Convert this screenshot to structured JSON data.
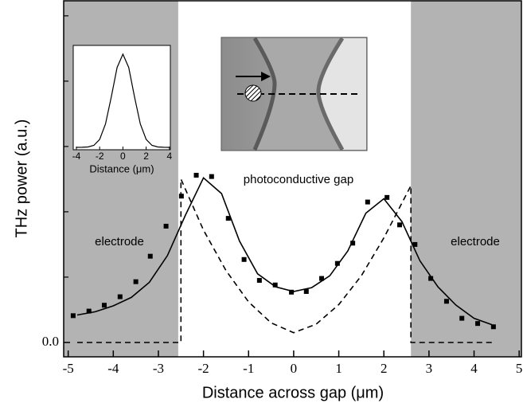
{
  "chart_data": {
    "type": "line",
    "xlabel": "Distance across gap (μm)",
    "ylabel": "THz power (a.u.)",
    "xlim": [
      -5.1,
      5.05
    ],
    "ylim": [
      -0.22,
      5.23
    ],
    "xticks": [
      -5,
      -4,
      -3,
      -2,
      -1,
      0,
      1,
      2,
      3,
      4,
      5
    ],
    "yticks": [
      {
        "value": 0,
        "label": "0.0"
      }
    ],
    "minor_yticks": [
      1,
      2,
      3,
      4,
      5
    ],
    "shaded_regions": [
      [
        -5.1,
        -2.56
      ],
      [
        2.6,
        5.05
      ]
    ],
    "shade_color": "#b3b3b3",
    "annotations": [
      "photoconductive gap",
      "electrode",
      "electrode"
    ],
    "series": [
      {
        "style": "markers",
        "color": "#000000",
        "x": [
          -4.89,
          -4.54,
          -4.2,
          -3.85,
          -3.5,
          -3.18,
          -2.83,
          -2.49,
          -2.16,
          -1.82,
          -1.45,
          -1.1,
          -0.76,
          -0.41,
          -0.05,
          0.28,
          0.62,
          0.97,
          1.31,
          1.64,
          2.07,
          2.35,
          2.69,
          3.04,
          3.39,
          3.73,
          4.08,
          4.43
        ],
        "values": [
          0.41,
          0.48,
          0.57,
          0.7,
          0.93,
          1.32,
          1.78,
          2.24,
          2.56,
          2.54,
          1.9,
          1.27,
          0.95,
          0.88,
          0.77,
          0.78,
          0.98,
          1.21,
          1.52,
          2.15,
          2.22,
          1.8,
          1.5,
          0.98,
          0.63,
          0.37,
          0.29,
          0.24
        ]
      },
      {
        "style": "solid",
        "color": "#000000",
        "x": [
          -4.8,
          -4.4,
          -4.0,
          -3.6,
          -3.2,
          -2.8,
          -2.4,
          -2.0,
          -1.6,
          -1.2,
          -0.8,
          -0.4,
          0,
          0.4,
          0.8,
          1.2,
          1.6,
          2.0,
          2.4,
          2.8,
          3.2,
          3.6,
          4.0,
          4.4
        ],
        "values": [
          0.42,
          0.47,
          0.56,
          0.69,
          0.92,
          1.33,
          1.95,
          2.52,
          2.28,
          1.55,
          1.05,
          0.85,
          0.78,
          0.84,
          1.02,
          1.4,
          1.98,
          2.2,
          1.85,
          1.25,
          0.85,
          0.57,
          0.37,
          0.27
        ]
      },
      {
        "style": "dashed",
        "color": "#000000",
        "x": [
          -4.8,
          -2.5,
          -2.5,
          -2.0,
          -1.5,
          -1.0,
          -0.5,
          0,
          0.5,
          1.0,
          1.5,
          2.0,
          2.6,
          2.6,
          4.4
        ],
        "values": [
          0,
          0,
          2.5,
          1.72,
          1.1,
          0.62,
          0.3,
          0.15,
          0.28,
          0.58,
          1.02,
          1.6,
          2.4,
          0,
          0
        ]
      }
    ],
    "inset": {
      "xlabel": "Distance (μm)",
      "xlim": [
        -4.27,
        4.08
      ],
      "ylim": [
        -0.026,
        1.094
      ],
      "xticks": [
        -4,
        -2,
        0,
        2,
        4
      ],
      "x": [
        -4,
        -3.5,
        -3,
        -2.5,
        -2,
        -1.5,
        -1,
        -0.5,
        0,
        0.5,
        1,
        1.5,
        2,
        2.5,
        3,
        3.5,
        4
      ],
      "values": [
        0,
        0.0005,
        0.004,
        0.021,
        0.085,
        0.25,
        0.54,
        0.857,
        1,
        0.857,
        0.54,
        0.25,
        0.085,
        0.021,
        0.004,
        0.0005,
        0
      ],
      "color": "#000000"
    }
  }
}
